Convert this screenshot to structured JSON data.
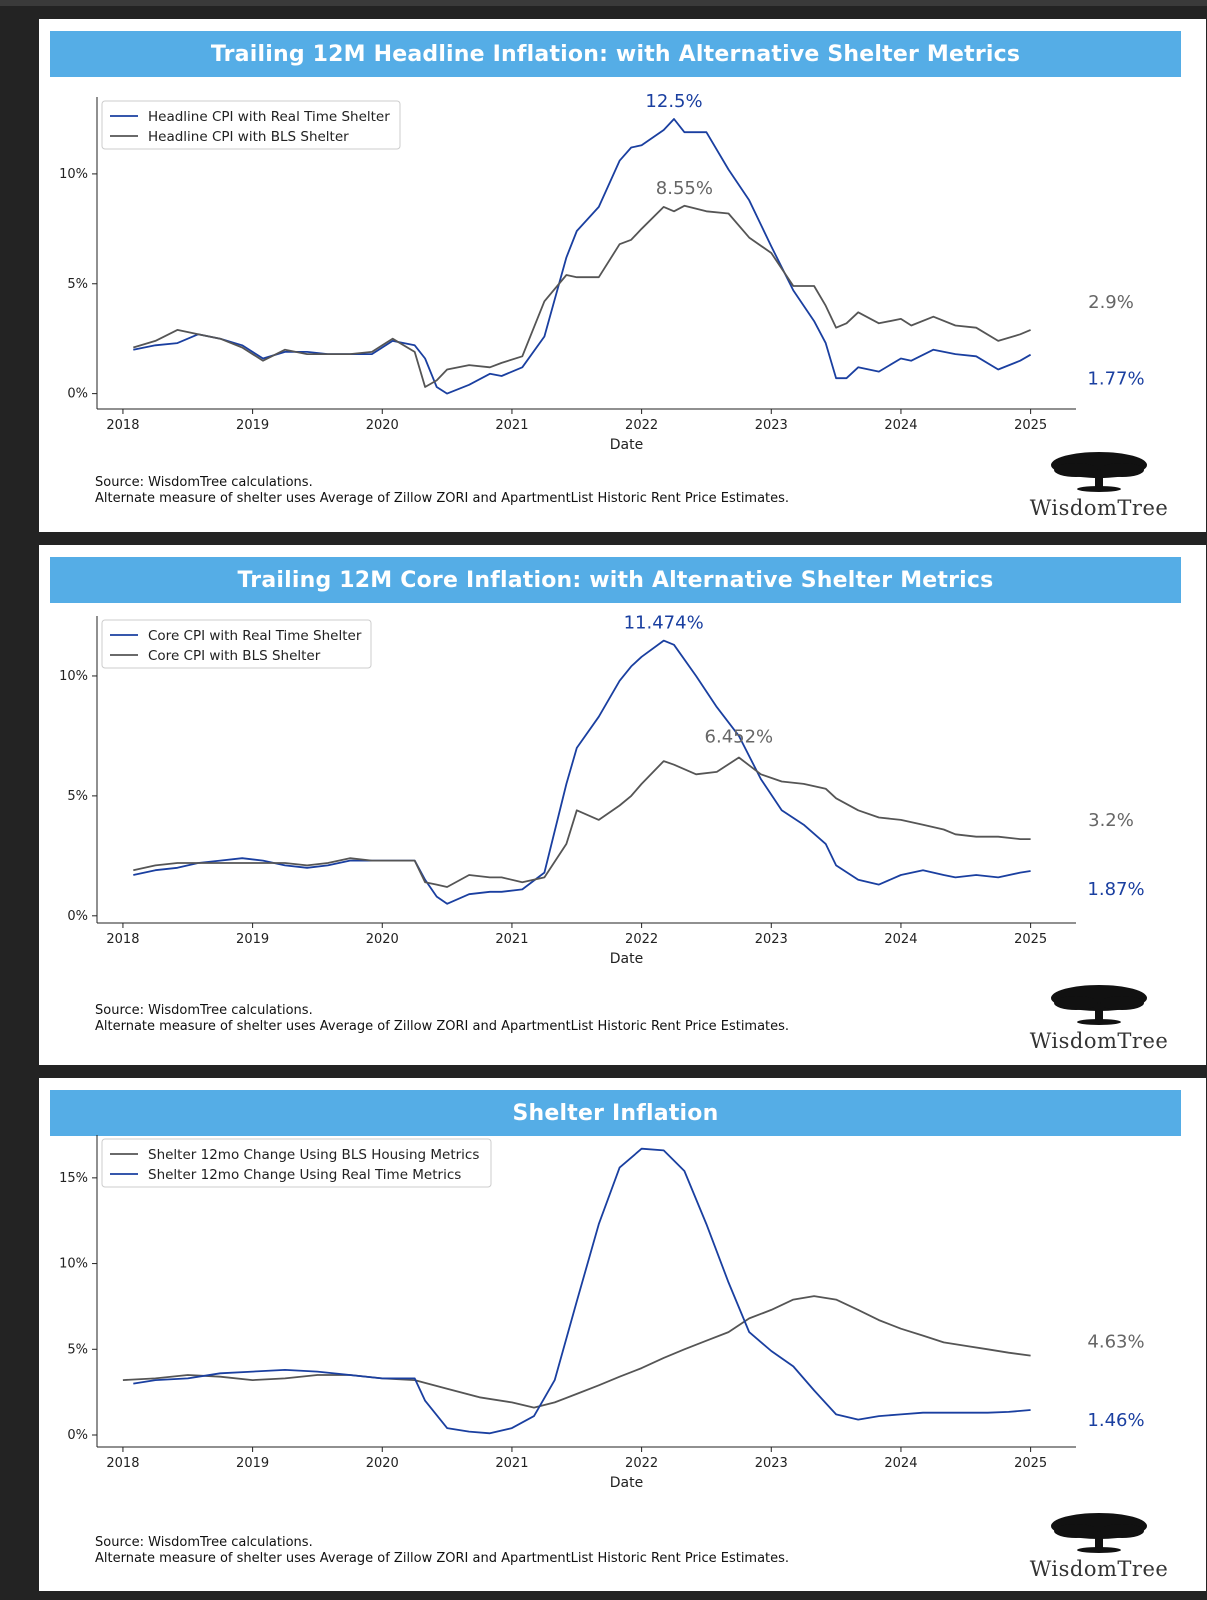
{
  "charts": [
    {
      "title": "Trailing 12M Headline Inflation: with Alternative Shelter Metrics",
      "source_line1": "Source: WisdomTree calculations.",
      "source_line2": "Alternate measure of shelter uses Average of Zillow ZORI and ApartmentList Historic Rent Price Estimates.",
      "logo": "WisdomTree"
    },
    {
      "title": "Trailing 12M Core Inflation: with Alternative Shelter Metrics",
      "source_line1": "Source: WisdomTree calculations.",
      "source_line2": "Alternate measure of shelter uses Average of Zillow ZORI and ApartmentList Historic Rent Price Estimates.",
      "logo": "WisdomTree"
    },
    {
      "title": "Shelter Inflation",
      "source_line1": "Source: WisdomTree calculations.",
      "source_line2": "Alternate measure of shelter uses Average of Zillow ZORI and ApartmentList Historic Rent Price Estimates.",
      "logo": "WisdomTree"
    }
  ],
  "colors": {
    "blue": "#1a3fa0",
    "gray": "#555555",
    "banner": "#55ade6"
  },
  "chart_data": [
    {
      "type": "line",
      "title": "Trailing 12M Headline Inflation: with Alternative Shelter Metrics",
      "xlabel": "Date",
      "ylabel": "",
      "xticks": [
        "2018",
        "2019",
        "2020",
        "2021",
        "2022",
        "2023",
        "2024",
        "2025"
      ],
      "yticks": [
        "0%",
        "5%",
        "10%"
      ],
      "ylim": [
        -0.7,
        13.5
      ],
      "legend_position": "upper-left",
      "series": [
        {
          "name": "Headline CPI with Real Time Shelter",
          "color": "#1a3fa0",
          "x": [
            2018.08,
            2018.25,
            2018.42,
            2018.58,
            2018.75,
            2018.92,
            2019.08,
            2019.25,
            2019.42,
            2019.58,
            2019.75,
            2019.92,
            2020.08,
            2020.25,
            2020.33,
            2020.42,
            2020.5,
            2020.67,
            2020.83,
            2020.92,
            2021.08,
            2021.25,
            2021.42,
            2021.5,
            2021.67,
            2021.83,
            2021.92,
            2022.0,
            2022.17,
            2022.25,
            2022.33,
            2022.5,
            2022.67,
            2022.83,
            2023.0,
            2023.17,
            2023.33,
            2023.42,
            2023.5,
            2023.58,
            2023.67,
            2023.83,
            2024.0,
            2024.08,
            2024.25,
            2024.42,
            2024.58,
            2024.75,
            2024.92,
            2025.0
          ],
          "y": [
            2.0,
            2.2,
            2.3,
            2.7,
            2.5,
            2.2,
            1.6,
            1.9,
            1.9,
            1.8,
            1.8,
            1.8,
            2.4,
            2.2,
            1.6,
            0.3,
            0.0,
            0.4,
            0.9,
            0.8,
            1.2,
            2.6,
            6.2,
            7.4,
            8.5,
            10.6,
            11.2,
            11.3,
            12.0,
            12.5,
            11.9,
            11.9,
            10.2,
            8.8,
            6.7,
            4.7,
            3.3,
            2.3,
            0.7,
            0.7,
            1.2,
            1.0,
            1.6,
            1.5,
            2.0,
            1.8,
            1.7,
            1.1,
            1.5,
            1.77
          ]
        },
        {
          "name": "Headline CPI with BLS Shelter",
          "color": "#555555",
          "x": [
            2018.08,
            2018.25,
            2018.42,
            2018.58,
            2018.75,
            2018.92,
            2019.08,
            2019.25,
            2019.42,
            2019.58,
            2019.75,
            2019.92,
            2020.08,
            2020.25,
            2020.33,
            2020.42,
            2020.5,
            2020.67,
            2020.83,
            2020.92,
            2021.08,
            2021.25,
            2021.42,
            2021.5,
            2021.67,
            2021.83,
            2021.92,
            2022.0,
            2022.17,
            2022.25,
            2022.33,
            2022.5,
            2022.67,
            2022.83,
            2023.0,
            2023.17,
            2023.33,
            2023.42,
            2023.5,
            2023.58,
            2023.67,
            2023.83,
            2024.0,
            2024.08,
            2024.25,
            2024.42,
            2024.58,
            2024.75,
            2024.92,
            2025.0
          ],
          "y": [
            2.1,
            2.4,
            2.9,
            2.7,
            2.5,
            2.1,
            1.5,
            2.0,
            1.8,
            1.8,
            1.8,
            1.9,
            2.5,
            1.9,
            0.3,
            0.6,
            1.1,
            1.3,
            1.2,
            1.4,
            1.7,
            4.2,
            5.4,
            5.3,
            5.3,
            6.8,
            7.0,
            7.5,
            8.5,
            8.3,
            8.55,
            8.3,
            8.2,
            7.1,
            6.4,
            4.9,
            4.9,
            4.0,
            3.0,
            3.2,
            3.7,
            3.2,
            3.4,
            3.1,
            3.5,
            3.1,
            3.0,
            2.4,
            2.7,
            2.9
          ]
        }
      ],
      "annotations": [
        "12.5%",
        "8.55%",
        "2.9%",
        "1.77%"
      ]
    },
    {
      "type": "line",
      "title": "Trailing 12M Core Inflation: with Alternative Shelter Metrics",
      "xlabel": "Date",
      "ylabel": "",
      "xticks": [
        "2018",
        "2019",
        "2020",
        "2021",
        "2022",
        "2023",
        "2024",
        "2025"
      ],
      "yticks": [
        "0%",
        "5%",
        "10%"
      ],
      "ylim": [
        -0.3,
        12.5
      ],
      "legend_position": "upper-left",
      "series": [
        {
          "name": "Core CPI with Real Time Shelter",
          "color": "#1a3fa0",
          "x": [
            2018.08,
            2018.25,
            2018.42,
            2018.58,
            2018.75,
            2018.92,
            2019.08,
            2019.25,
            2019.42,
            2019.58,
            2019.75,
            2019.92,
            2020.08,
            2020.25,
            2020.33,
            2020.42,
            2020.5,
            2020.67,
            2020.83,
            2020.92,
            2021.08,
            2021.25,
            2021.42,
            2021.5,
            2021.67,
            2021.83,
            2021.92,
            2022.0,
            2022.17,
            2022.25,
            2022.42,
            2022.58,
            2022.75,
            2022.92,
            2023.08,
            2023.25,
            2023.42,
            2023.5,
            2023.67,
            2023.83,
            2024.0,
            2024.17,
            2024.33,
            2024.42,
            2024.58,
            2024.75,
            2024.92,
            2025.0
          ],
          "y": [
            1.7,
            1.9,
            2.0,
            2.2,
            2.3,
            2.4,
            2.3,
            2.1,
            2.0,
            2.1,
            2.3,
            2.3,
            2.3,
            2.3,
            1.5,
            0.8,
            0.5,
            0.9,
            1.0,
            1.0,
            1.1,
            1.8,
            5.5,
            7.0,
            8.3,
            9.8,
            10.4,
            10.8,
            11.474,
            11.3,
            10.0,
            8.7,
            7.5,
            5.7,
            4.4,
            3.8,
            3.0,
            2.1,
            1.5,
            1.3,
            1.7,
            1.9,
            1.7,
            1.6,
            1.7,
            1.6,
            1.8,
            1.87
          ]
        },
        {
          "name": "Core CPI with BLS Shelter",
          "color": "#555555",
          "x": [
            2018.08,
            2018.25,
            2018.42,
            2018.58,
            2018.75,
            2018.92,
            2019.08,
            2019.25,
            2019.42,
            2019.58,
            2019.75,
            2019.92,
            2020.08,
            2020.25,
            2020.33,
            2020.42,
            2020.5,
            2020.67,
            2020.83,
            2020.92,
            2021.08,
            2021.25,
            2021.42,
            2021.5,
            2021.67,
            2021.83,
            2021.92,
            2022.0,
            2022.17,
            2022.25,
            2022.42,
            2022.58,
            2022.75,
            2022.92,
            2023.08,
            2023.25,
            2023.42,
            2023.5,
            2023.67,
            2023.83,
            2024.0,
            2024.17,
            2024.33,
            2024.42,
            2024.58,
            2024.75,
            2024.92,
            2025.0
          ],
          "y": [
            1.9,
            2.1,
            2.2,
            2.2,
            2.2,
            2.2,
            2.2,
            2.2,
            2.1,
            2.2,
            2.4,
            2.3,
            2.3,
            2.3,
            1.4,
            1.3,
            1.2,
            1.7,
            1.6,
            1.6,
            1.4,
            1.6,
            3.0,
            4.4,
            4.0,
            4.6,
            5.0,
            5.5,
            6.452,
            6.3,
            5.9,
            6.0,
            6.6,
            5.9,
            5.6,
            5.5,
            5.3,
            4.9,
            4.4,
            4.1,
            4.0,
            3.8,
            3.6,
            3.4,
            3.3,
            3.3,
            3.2,
            3.2
          ]
        }
      ],
      "annotations": [
        "11.474%",
        "6.452%",
        "3.2%",
        "1.87%"
      ]
    },
    {
      "type": "line",
      "title": "Shelter Inflation",
      "xlabel": "Date",
      "ylabel": "",
      "xticks": [
        "2018",
        "2019",
        "2020",
        "2021",
        "2022",
        "2023",
        "2024",
        "2025"
      ],
      "yticks": [
        "0%",
        "5%",
        "10%",
        "15%"
      ],
      "ylim": [
        -0.7,
        17.5
      ],
      "legend_position": "upper-left",
      "series": [
        {
          "name": "Shelter 12mo Change Using BLS Housing Metrics",
          "color": "#555555",
          "x": [
            2018.0,
            2018.25,
            2018.5,
            2018.75,
            2019.0,
            2019.25,
            2019.5,
            2019.75,
            2020.0,
            2020.25,
            2020.5,
            2020.75,
            2021.0,
            2021.17,
            2021.33,
            2021.5,
            2021.67,
            2021.83,
            2022.0,
            2022.17,
            2022.33,
            2022.5,
            2022.67,
            2022.83,
            2023.0,
            2023.17,
            2023.33,
            2023.5,
            2023.67,
            2023.83,
            2024.0,
            2024.17,
            2024.33,
            2024.5,
            2024.67,
            2024.83,
            2025.0
          ],
          "y": [
            3.2,
            3.3,
            3.5,
            3.4,
            3.2,
            3.3,
            3.5,
            3.5,
            3.3,
            3.2,
            2.7,
            2.2,
            1.9,
            1.6,
            1.9,
            2.4,
            2.9,
            3.4,
            3.9,
            4.5,
            5.0,
            5.5,
            6.0,
            6.8,
            7.3,
            7.9,
            8.1,
            7.9,
            7.3,
            6.7,
            6.2,
            5.8,
            5.4,
            5.2,
            5.0,
            4.8,
            4.63
          ]
        },
        {
          "name": "Shelter 12mo Change Using Real Time Metrics",
          "color": "#1a3fa0",
          "x": [
            2018.08,
            2018.25,
            2018.5,
            2018.75,
            2019.0,
            2019.25,
            2019.5,
            2019.75,
            2020.0,
            2020.25,
            2020.33,
            2020.5,
            2020.67,
            2020.83,
            2021.0,
            2021.17,
            2021.33,
            2021.5,
            2021.67,
            2021.83,
            2022.0,
            2022.17,
            2022.33,
            2022.5,
            2022.67,
            2022.83,
            2023.0,
            2023.17,
            2023.33,
            2023.5,
            2023.67,
            2023.83,
            2024.0,
            2024.17,
            2024.33,
            2024.5,
            2024.67,
            2024.83,
            2025.0
          ],
          "y": [
            3.0,
            3.2,
            3.3,
            3.6,
            3.7,
            3.8,
            3.7,
            3.5,
            3.3,
            3.3,
            2.0,
            0.4,
            0.2,
            0.1,
            0.4,
            1.1,
            3.2,
            7.8,
            12.3,
            15.6,
            16.7,
            16.6,
            15.4,
            12.3,
            8.9,
            6.0,
            4.9,
            4.0,
            2.6,
            1.2,
            0.9,
            1.1,
            1.2,
            1.3,
            1.3,
            1.3,
            1.3,
            1.35,
            1.46
          ]
        }
      ],
      "annotations": [
        "4.63%",
        "1.46%"
      ]
    }
  ]
}
